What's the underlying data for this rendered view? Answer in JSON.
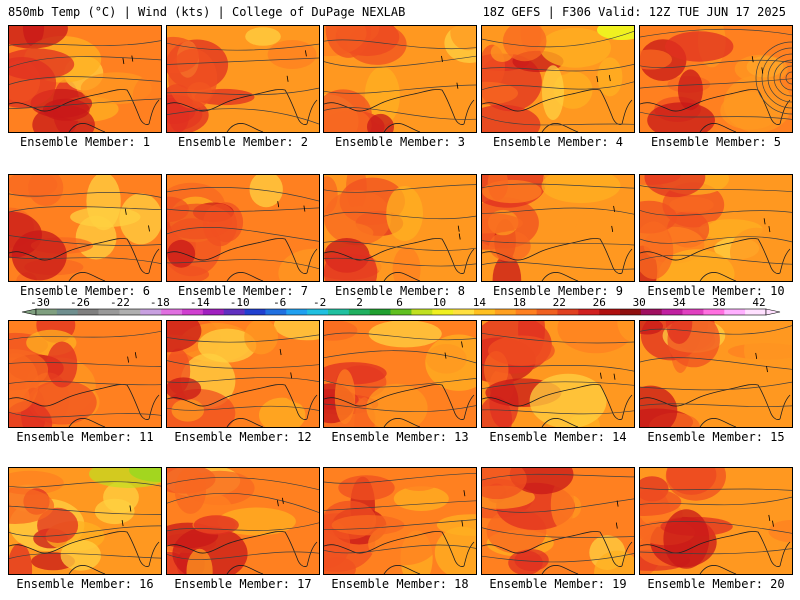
{
  "header": {
    "left": "850mb Temp (°C) | Wind (kts) | College of DuPage NEXLAB",
    "right": "18Z GEFS | F306 Valid: 12Z TUE JUN 17 2025"
  },
  "panels": [
    {
      "label": "Ensemble Member: 1"
    },
    {
      "label": "Ensemble Member: 2"
    },
    {
      "label": "Ensemble Member: 3"
    },
    {
      "label": "Ensemble Member: 4"
    },
    {
      "label": "Ensemble Member: 5"
    },
    {
      "label": "Ensemble Member: 6"
    },
    {
      "label": "Ensemble Member: 7"
    },
    {
      "label": "Ensemble Member: 8"
    },
    {
      "label": "Ensemble Member: 9"
    },
    {
      "label": "Ensemble Member: 10"
    },
    {
      "label": "Ensemble Member: 11"
    },
    {
      "label": "Ensemble Member: 12"
    },
    {
      "label": "Ensemble Member: 13"
    },
    {
      "label": "Ensemble Member: 14"
    },
    {
      "label": "Ensemble Member: 15"
    },
    {
      "label": "Ensemble Member: 16"
    },
    {
      "label": "Ensemble Member: 17"
    },
    {
      "label": "Ensemble Member: 18"
    },
    {
      "label": "Ensemble Member: 19"
    },
    {
      "label": "Ensemble Member: 20"
    }
  ],
  "colorbar": {
    "ticks": [
      "-30",
      "-26",
      "-22",
      "-18",
      "-14",
      "-10",
      "-6",
      "-2",
      "2",
      "6",
      "10",
      "14",
      "18",
      "22",
      "26",
      "30",
      "34",
      "38",
      "42"
    ],
    "colors": [
      "#7f9f7f",
      "#6f8f8f",
      "#808080",
      "#9a9a9a",
      "#b0b0b0",
      "#c8a0e0",
      "#e070e0",
      "#d040d0",
      "#a020c0",
      "#6030c0",
      "#2040d0",
      "#2070e0",
      "#20a0f0",
      "#20c0e0",
      "#20c0a0",
      "#20b060",
      "#20a030",
      "#60c020",
      "#c0e020",
      "#f0f020",
      "#ffe040",
      "#ffc020",
      "#ffa020",
      "#ff8020",
      "#f06020",
      "#e04020",
      "#d02020",
      "#b01010",
      "#901010",
      "#a01060",
      "#c020a0",
      "#e040c0",
      "#ff70e0",
      "#ffb0ff",
      "#ffe0ff"
    ]
  }
}
